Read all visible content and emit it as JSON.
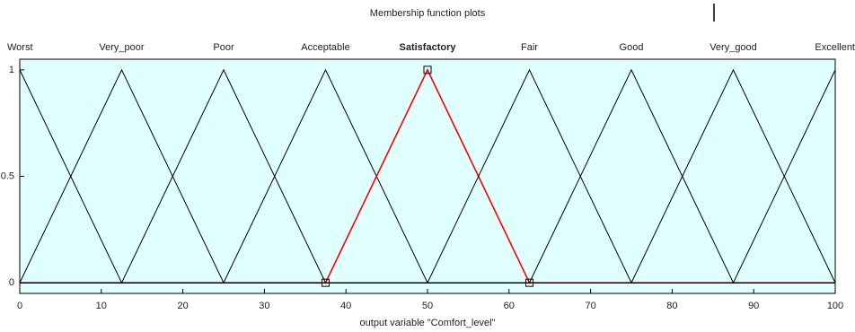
{
  "chart_data": {
    "type": "line",
    "title": "Membership function plots",
    "x_label": "output variable \"Comfort_level\"",
    "xlim": [
      0,
      100
    ],
    "ylim": [
      -0.05,
      1.05
    ],
    "xticks": [
      0,
      10,
      20,
      30,
      40,
      50,
      60,
      70,
      80,
      90,
      100
    ],
    "yticks": [
      0,
      0.5,
      1
    ],
    "background": "#e0ffff",
    "series": [
      {
        "name": "Worst",
        "color": "#000000",
        "x": [
          0,
          12.5,
          100
        ],
        "values": [
          1,
          0,
          0
        ]
      },
      {
        "name": "Very_poor",
        "color": "#000000",
        "x": [
          0,
          12.5,
          25,
          100
        ],
        "values": [
          0,
          1,
          0,
          0
        ]
      },
      {
        "name": "Poor",
        "color": "#000000",
        "x": [
          0,
          12.5,
          25,
          37.5,
          100
        ],
        "values": [
          0,
          0,
          1,
          0,
          0
        ]
      },
      {
        "name": "Acceptable",
        "color": "#000000",
        "x": [
          0,
          25,
          37.5,
          50,
          100
        ],
        "values": [
          0,
          0,
          1,
          0,
          0
        ]
      },
      {
        "name": "Satisfactory",
        "color": "#ff0000",
        "marker": "square",
        "x": [
          0,
          37.5,
          50,
          62.5,
          100
        ],
        "values": [
          0,
          0,
          1,
          0,
          0
        ]
      },
      {
        "name": "Fair",
        "color": "#000000",
        "x": [
          0,
          50,
          62.5,
          75,
          100
        ],
        "values": [
          0,
          0,
          1,
          0,
          0
        ]
      },
      {
        "name": "Good",
        "color": "#000000",
        "x": [
          0,
          62.5,
          75,
          87.5,
          100
        ],
        "values": [
          0,
          0,
          1,
          0,
          0
        ]
      },
      {
        "name": "Very_good",
        "color": "#000000",
        "x": [
          0,
          75,
          87.5,
          100
        ],
        "values": [
          0,
          0,
          1,
          0
        ]
      },
      {
        "name": "Excellent",
        "color": "#000000",
        "x": [
          0,
          87.5,
          100
        ],
        "values": [
          0,
          0,
          1
        ]
      }
    ]
  }
}
